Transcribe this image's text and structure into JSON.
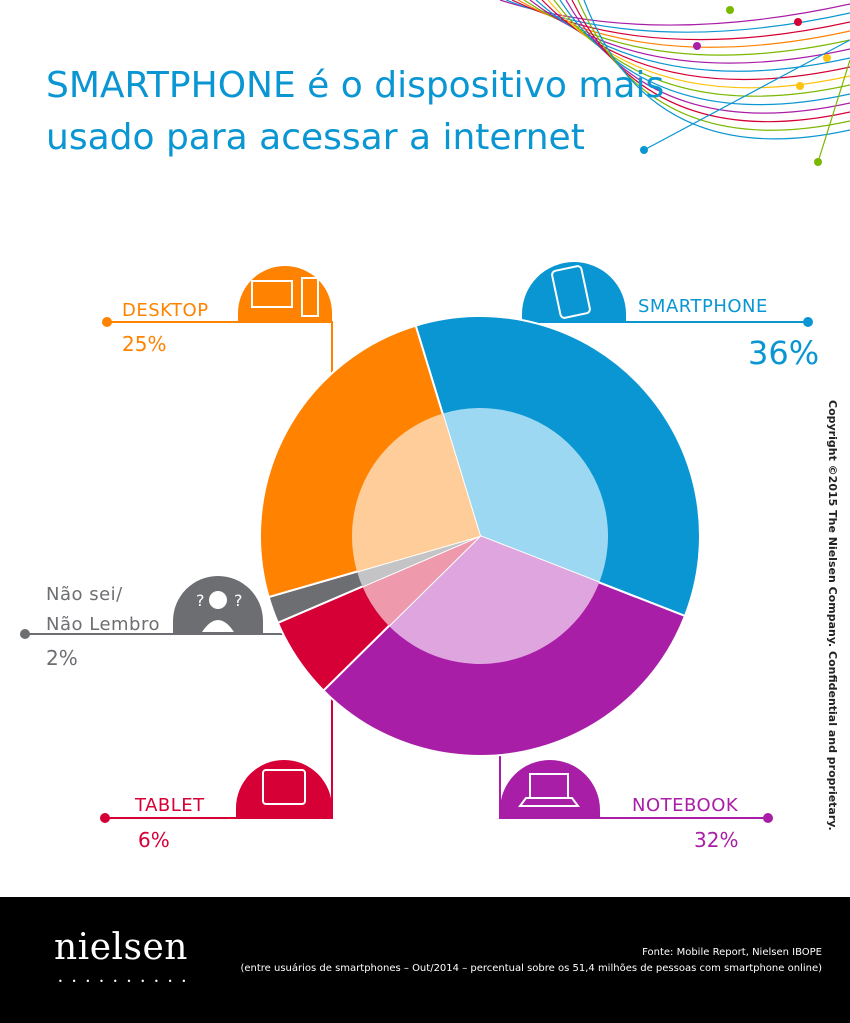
{
  "title": "SMARTPHONE é o dispositivo mais usado para acessar a internet",
  "copyright": "Copyright ©2015 The Nielsen Company. Confidential and proprietary.",
  "brand": "nielsen",
  "source_line1": "Fonte: Mobile Report, Nielsen IBOPE",
  "source_line2": "(entre usuários de smartphones – Out/2014 – percentual sobre os 51,4 milhões de pessoas com smartphone online)",
  "chart_data": {
    "type": "pie",
    "title": "SMARTPHONE é o dispositivo mais usado para acessar a internet",
    "slices": [
      {
        "key": "smartphone",
        "label": "SMARTPHONE",
        "value": 36,
        "value_label": "36%",
        "color": "#0a96d2",
        "inner_color": "#9dd8f2",
        "icon": "smartphone-icon"
      },
      {
        "key": "notebook",
        "label": "NOTEBOOK",
        "value": 32,
        "value_label": "32%",
        "color": "#a91ea7",
        "inner_color": "#dfa5df",
        "icon": "laptop-icon"
      },
      {
        "key": "tablet",
        "label": "TABLET",
        "value": 6,
        "value_label": "6%",
        "color": "#d60037",
        "inner_color": "#ef99ad",
        "icon": "tablet-icon"
      },
      {
        "key": "naosei",
        "label": "Não sei/ Não Lembro",
        "label_lines": [
          "Não sei/",
          "Não Lembro"
        ],
        "value": 2,
        "value_label": "2%",
        "color": "#6d6e71",
        "inner_color": "#c4c4c6",
        "icon": "question-person-icon"
      },
      {
        "key": "desktop",
        "label": "DESKTOP",
        "value": 25,
        "value_label": "25%",
        "color": "#ff8200",
        "inner_color": "#ffcd99",
        "icon": "desktop-computer-icon"
      }
    ],
    "legend": "callouts",
    "grid": false
  }
}
